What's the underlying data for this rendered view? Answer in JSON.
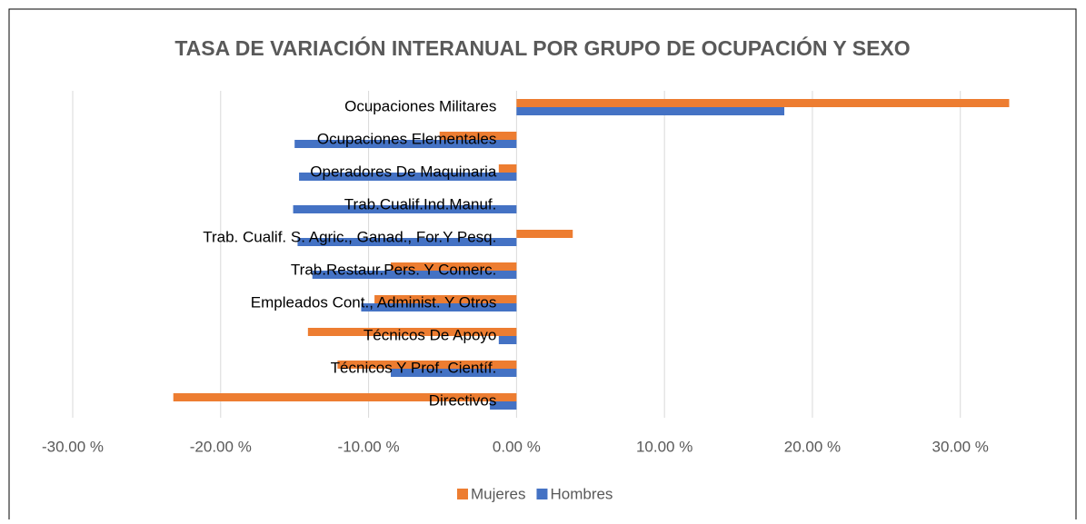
{
  "chart_data": {
    "type": "barh",
    "title": "TASA DE VARIACIÓN INTERANUAL POR GRUPO DE OCUPACIÓN Y SEXO",
    "categories": [
      "Ocupaciones Militares",
      "Ocupaciones Elementales",
      "Operadores De Maquinaria",
      "Trab.Cualif.Ind.Manuf.",
      "Trab. Cualif. S. Agric., Ganad., For.Y Pesq.",
      "Trab.Restaur.Pers. Y Comerc.",
      "Empleados Cont., Administ. Y Otros",
      "Técnicos De Apoyo",
      "Técnicos Y Prof. Científ.",
      "Directivos"
    ],
    "series": [
      {
        "name": "Mujeres",
        "color": "#ed7d31",
        "values": [
          33.3,
          -5.2,
          -1.2,
          0,
          3.8,
          -8.5,
          -9.6,
          -14.1,
          -12.1,
          -23.2
        ]
      },
      {
        "name": "Hombres",
        "color": "#4472c4",
        "values": [
          18.1,
          -15.0,
          -14.7,
          -15.1,
          -14.8,
          -13.8,
          -10.5,
          -1.2,
          -8.5,
          -1.8
        ]
      }
    ],
    "xlim": [
      -30,
      34.5
    ],
    "xticks": [
      {
        "value": -30,
        "label": "-30.00 %"
      },
      {
        "value": -20,
        "label": "-20.00 %"
      },
      {
        "value": -10,
        "label": "-10.00 %"
      },
      {
        "value": 0,
        "label": "0.00 %"
      },
      {
        "value": 10,
        "label": "10.00 %"
      },
      {
        "value": 20,
        "label": "20.00 %"
      },
      {
        "value": 30,
        "label": "30.00 %"
      }
    ],
    "grid": true,
    "legend": "bottom"
  }
}
